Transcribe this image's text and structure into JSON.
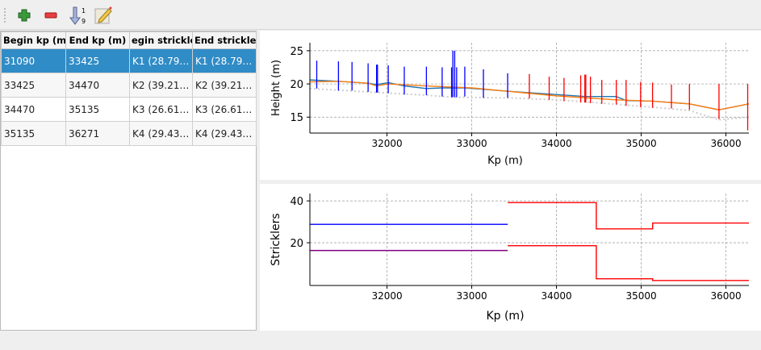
{
  "toolbar": {
    "items": [
      {
        "name": "add-icon",
        "color": "#3a9a3a"
      },
      {
        "name": "remove-icon",
        "color": "#e03030"
      },
      {
        "name": "sort-icon",
        "label_top": "1",
        "label_bottom": "9"
      },
      {
        "name": "edit-icon"
      }
    ]
  },
  "table": {
    "headers": [
      "Begin kp (m)",
      "End kp (m)",
      "egin strickle",
      "End strickler"
    ],
    "rows": [
      [
        "31090",
        "33425",
        "K1 (28.79…",
        "K1 (28.79…"
      ],
      [
        "33425",
        "34470",
        "K2 (39.21…",
        "K2 (39.21…"
      ],
      [
        "34470",
        "35135",
        "K3 (26.61…",
        "K3 (26.61…"
      ],
      [
        "35135",
        "36271",
        "K4 (29.43…",
        "K4 (29.43…"
      ]
    ],
    "selected_row": 0
  },
  "chart_data": [
    {
      "type": "line",
      "xlabel": "Kp (m)",
      "ylabel": "Height (m)",
      "xlim": [
        31090,
        36271
      ],
      "ylim": [
        12.6,
        26.2
      ],
      "xticks": [
        32000,
        33000,
        34000,
        35000,
        36000
      ],
      "yticks": [
        15,
        20,
        25
      ],
      "grid": true,
      "series": [
        {
          "color": "#1f77b4",
          "points": [
            [
              31090,
              20.6
            ],
            [
              31427,
              20.4
            ],
            [
              31777,
              20.1
            ],
            [
              31877,
              19.9
            ],
            [
              32015,
              20.2
            ],
            [
              32204,
              19.7
            ],
            [
              32465,
              19.3
            ],
            [
              32651,
              19.4
            ],
            [
              32918,
              19.4
            ],
            [
              33138,
              19.2
            ],
            [
              33424,
              18.9
            ],
            [
              34346,
              18.1
            ],
            [
              34706,
              18.1
            ],
            [
              34822,
              17.5
            ],
            [
              35134,
              17.4
            ],
            [
              35569,
              17.0
            ],
            [
              35918,
              16.1
            ],
            [
              36271,
              17.0
            ]
          ]
        },
        {
          "color": "#ff7f0e",
          "points": [
            [
              31090,
              20.3
            ],
            [
              31427,
              20.4
            ],
            [
              31777,
              20.1
            ],
            [
              31877,
              19.7
            ],
            [
              32015,
              20.0
            ],
            [
              32465,
              19.7
            ],
            [
              33000,
              19.4
            ],
            [
              34000,
              18.2
            ],
            [
              34346,
              17.9
            ],
            [
              34706,
              17.6
            ],
            [
              35134,
              17.4
            ],
            [
              35569,
              17.0
            ],
            [
              35918,
              16.1
            ],
            [
              36271,
              17.0
            ]
          ]
        },
        {
          "color": "#cccccc",
          "dotted": true,
          "points": [
            [
              31090,
              19.3
            ],
            [
              31777,
              18.8
            ],
            [
              32465,
              18.3
            ],
            [
              32777,
              18.0
            ],
            [
              33424,
              17.9
            ],
            [
              34000,
              17.6
            ],
            [
              34346,
              17.3
            ],
            [
              35134,
              16.5
            ],
            [
              35569,
              16.0
            ],
            [
              35918,
              14.6
            ],
            [
              36271,
              15.0
            ]
          ]
        }
      ],
      "sticks": [
        [
          31171,
          19.3,
          23.5,
          "#0000ff"
        ],
        [
          31427,
          19.0,
          23.4,
          "#0000ff"
        ],
        [
          31587,
          19.0,
          23.3,
          "#0000ff"
        ],
        [
          31777,
          18.8,
          23.1,
          "#0000ff"
        ],
        [
          31877,
          18.7,
          22.9,
          "#0000ff"
        ],
        [
          31888,
          18.7,
          22.9,
          "#0000ff"
        ],
        [
          32015,
          18.6,
          22.8,
          "#0000ff"
        ],
        [
          32204,
          18.4,
          22.6,
          "#0000ff"
        ],
        [
          32465,
          18.3,
          22.6,
          "#0000ff"
        ],
        [
          32651,
          18.1,
          22.5,
          "#0000ff"
        ],
        [
          32762,
          18.0,
          22.5,
          "#0000ff"
        ],
        [
          32777,
          18.0,
          25.0,
          "#0000ff"
        ],
        [
          32799,
          18.0,
          25.0,
          "#0000ff"
        ],
        [
          32822,
          18.0,
          22.5,
          "#0000ff"
        ],
        [
          32918,
          18.1,
          22.6,
          "#0000ff"
        ],
        [
          33138,
          17.9,
          22.2,
          "#0000ff"
        ],
        [
          33424,
          17.9,
          21.6,
          "#0000ff"
        ],
        [
          33680,
          17.8,
          21.5,
          "#ff0000"
        ],
        [
          33914,
          17.6,
          21.1,
          "#ff0000"
        ],
        [
          34089,
          17.4,
          20.9,
          "#ff0000"
        ],
        [
          34286,
          17.2,
          21.3,
          "#ff0000"
        ],
        [
          34335,
          17.2,
          21.4,
          "#ff0000"
        ],
        [
          34346,
          17.2,
          21.4,
          "#ff0000"
        ],
        [
          34401,
          17.1,
          21.1,
          "#ff0000"
        ],
        [
          34535,
          17.0,
          20.6,
          "#ff0000"
        ],
        [
          34706,
          16.9,
          20.6,
          "#ff0000"
        ],
        [
          34822,
          16.7,
          20.6,
          "#ff0000"
        ],
        [
          34993,
          16.5,
          20.3,
          "#ff0000"
        ],
        [
          35134,
          16.4,
          20.2,
          "#ff0000"
        ],
        [
          35357,
          16.3,
          19.9,
          "#ff0000"
        ],
        [
          35569,
          16.1,
          20.0,
          "#ff0000"
        ],
        [
          35918,
          14.7,
          20.0,
          "#ff0000"
        ],
        [
          36257,
          13.0,
          20.0,
          "#ff0000"
        ]
      ]
    },
    {
      "type": "line",
      "xlabel": "Kp (m)",
      "ylabel": "Stricklers",
      "xlim": [
        31090,
        36271
      ],
      "ylim": [
        -0.4,
        43.5
      ],
      "xticks": [
        32000,
        33000,
        34000,
        35000,
        36000
      ],
      "yticks": [
        20,
        40
      ],
      "grid": true,
      "series": [
        {
          "color": "#0000ff",
          "steps": [
            [
              31090,
              33425,
              28.79
            ]
          ]
        },
        {
          "color": "#ff0000",
          "steps": [
            [
              33425,
              34470,
              39.21
            ],
            [
              34470,
              35135,
              26.61
            ],
            [
              35135,
              36271,
              29.43
            ]
          ]
        },
        {
          "color": "#800080",
          "steps": [
            [
              31090,
              33425,
              16.3
            ]
          ]
        },
        {
          "color": "#ff0000",
          "steps": [
            [
              33425,
              34470,
              18.6
            ],
            [
              34470,
              35135,
              2.8
            ],
            [
              35135,
              36271,
              2.0
            ]
          ]
        }
      ]
    }
  ]
}
